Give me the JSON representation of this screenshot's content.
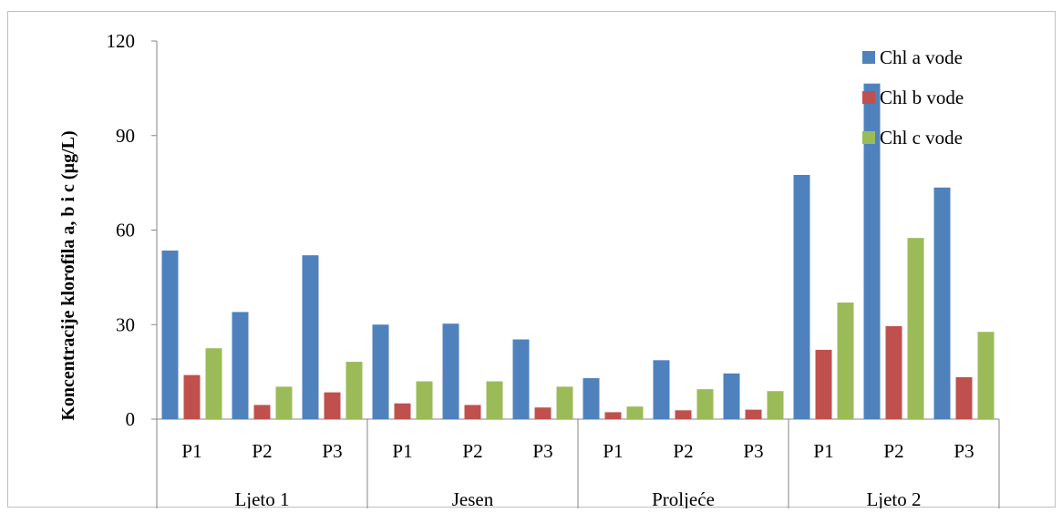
{
  "chart_data": {
    "type": "bar",
    "title": "",
    "xlabel": "",
    "ylabel": "Koncentracije klorofila a, b i c (µg/L)",
    "ylim": [
      0,
      120
    ],
    "yticks": [
      "0",
      "30",
      "60",
      "90",
      "120"
    ],
    "groups": [
      {
        "name": "Ljeto 1",
        "categories": [
          "P1",
          "P2",
          "P3"
        ]
      },
      {
        "name": "Jesen",
        "categories": [
          "P1",
          "P2",
          "P3"
        ]
      },
      {
        "name": "Proljeće",
        "categories": [
          "P1",
          "P2",
          "P3"
        ]
      },
      {
        "name": "Ljeto 2",
        "categories": [
          "P1",
          "P2",
          "P3"
        ]
      }
    ],
    "series": [
      {
        "name": "Chl a vode",
        "color": "#4F81BD",
        "values": [
          53.5,
          34,
          52,
          30,
          30.3,
          25.3,
          13,
          18.7,
          14.5,
          77.5,
          106.5,
          73.5
        ]
      },
      {
        "name": "Chl b vode",
        "color": "#C0504D",
        "values": [
          14,
          4.5,
          8.5,
          5,
          4.5,
          3.7,
          2.2,
          2.8,
          3,
          22,
          29.5,
          13.3
        ]
      },
      {
        "name": "Chl c vode",
        "color": "#9BBB59",
        "values": [
          22.5,
          10.3,
          18.2,
          12,
          12,
          10.3,
          4,
          9.5,
          8.9,
          37,
          57.5,
          27.7
        ]
      }
    ],
    "legend_position": "top-right",
    "grid": false
  }
}
